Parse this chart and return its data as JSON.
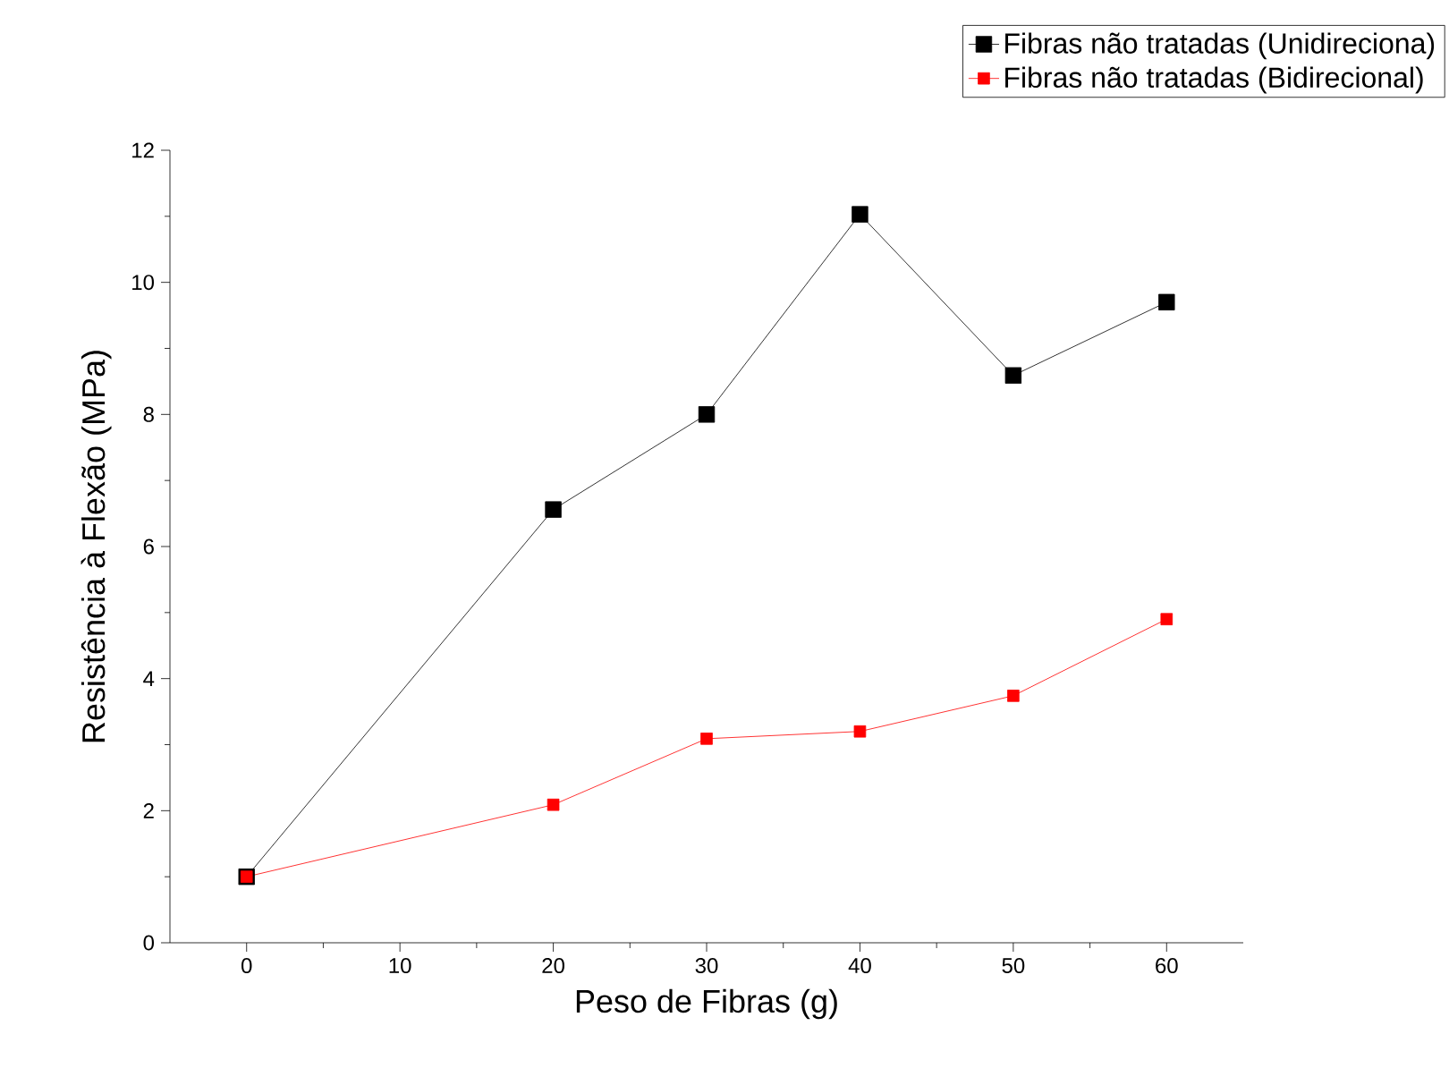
{
  "chart_data": {
    "type": "line",
    "xlabel": "Peso de Fibras (g)",
    "ylabel": "Resistência à Flexão (MPa)",
    "x": [
      0,
      20,
      30,
      40,
      50,
      60
    ],
    "series": [
      {
        "name": "Fibras não tratadas (Unidireciona)",
        "color": "#000000",
        "values": [
          1.0,
          6.56,
          8.0,
          11.03,
          8.59,
          9.7
        ]
      },
      {
        "name": "Fibras não tratadas (Bidirecional)",
        "color": "#ff0000",
        "values": [
          1.0,
          2.09,
          3.09,
          3.2,
          3.74,
          4.9
        ]
      }
    ],
    "xlim": [
      -5,
      65
    ],
    "ylim": [
      0,
      12
    ],
    "xticks": [
      0,
      10,
      20,
      30,
      40,
      50,
      60
    ],
    "yticks": [
      0,
      2,
      4,
      6,
      8,
      10,
      12
    ],
    "grid": false,
    "legend": "top right",
    "marker": "square",
    "line_style": "solid"
  }
}
